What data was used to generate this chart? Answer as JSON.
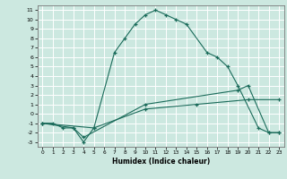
{
  "xlabel": "Humidex (Indice chaleur)",
  "bg_color": "#cce8e0",
  "grid_color": "#ffffff",
  "line_color": "#1a6b5a",
  "xlim": [
    -0.5,
    23.5
  ],
  "ylim": [
    -3.5,
    11.5
  ],
  "xticks": [
    0,
    1,
    2,
    3,
    4,
    5,
    6,
    7,
    8,
    9,
    10,
    11,
    12,
    13,
    14,
    15,
    16,
    17,
    18,
    19,
    20,
    21,
    22,
    23
  ],
  "yticks": [
    -3,
    -2,
    -1,
    0,
    1,
    2,
    3,
    4,
    5,
    6,
    7,
    8,
    9,
    10,
    11
  ],
  "curve1_x": [
    0,
    1,
    2,
    3,
    4,
    5,
    7,
    8,
    9,
    10,
    11,
    12,
    13,
    14,
    16,
    17,
    18,
    19,
    21,
    22,
    23
  ],
  "curve1_y": [
    -1,
    -1,
    -1.5,
    -1.5,
    -3,
    -1.5,
    6.5,
    8,
    9.5,
    10.5,
    11,
    10.5,
    10,
    9.5,
    6.5,
    6,
    5,
    3,
    -1.5,
    -2,
    -2
  ],
  "curve2_x": [
    0,
    3,
    4,
    10,
    19,
    20,
    22,
    23
  ],
  "curve2_y": [
    -1,
    -1.5,
    -2.5,
    1,
    2.5,
    3,
    -2,
    -2
  ],
  "curve3_x": [
    0,
    5,
    10,
    15,
    20,
    23
  ],
  "curve3_y": [
    -1,
    -1.5,
    0.5,
    1,
    1.5,
    1.5
  ]
}
